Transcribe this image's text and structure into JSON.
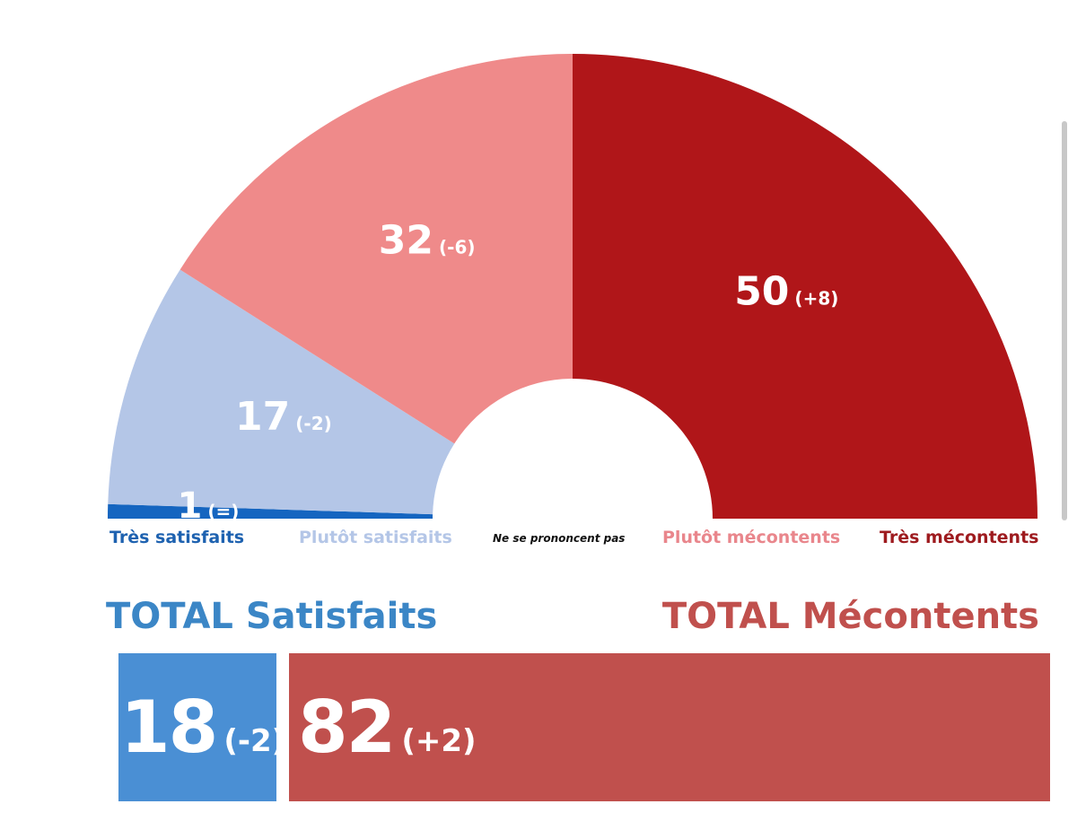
{
  "chart_data": {
    "type": "pie",
    "variant": "half-donut",
    "categories": [
      "Très satisfaits",
      "Plutôt satisfaits",
      "Ne se prononcent pas",
      "Plutôt mécontents",
      "Très mécontents"
    ],
    "values": [
      1,
      17,
      0,
      32,
      50
    ],
    "value_labels": [
      "1",
      "17",
      "",
      "32",
      "50"
    ],
    "changes": [
      "(=)",
      "(-2)",
      "",
      "(-6)",
      "(+8)"
    ],
    "colors": [
      "#1565c0",
      "#b4c6e7",
      "#ffffff",
      "#ef8a8a",
      "#b01619"
    ],
    "label_colors": [
      "#1e62b0",
      "#b4c6e7",
      "#111111",
      "#e9868c",
      "#9e1b1f"
    ]
  },
  "totals": {
    "satisfied": {
      "title": "TOTAL Satisfaits",
      "value": 18,
      "value_label": "18",
      "change": "(-2)",
      "color": "#4a8fd4",
      "title_color": "#3b86c6"
    },
    "discontent": {
      "title": "TOTAL Mécontents",
      "value": 82,
      "value_label": "82",
      "change": "(+2)",
      "color": "#c0504d",
      "title_color": "#c0504d"
    }
  }
}
